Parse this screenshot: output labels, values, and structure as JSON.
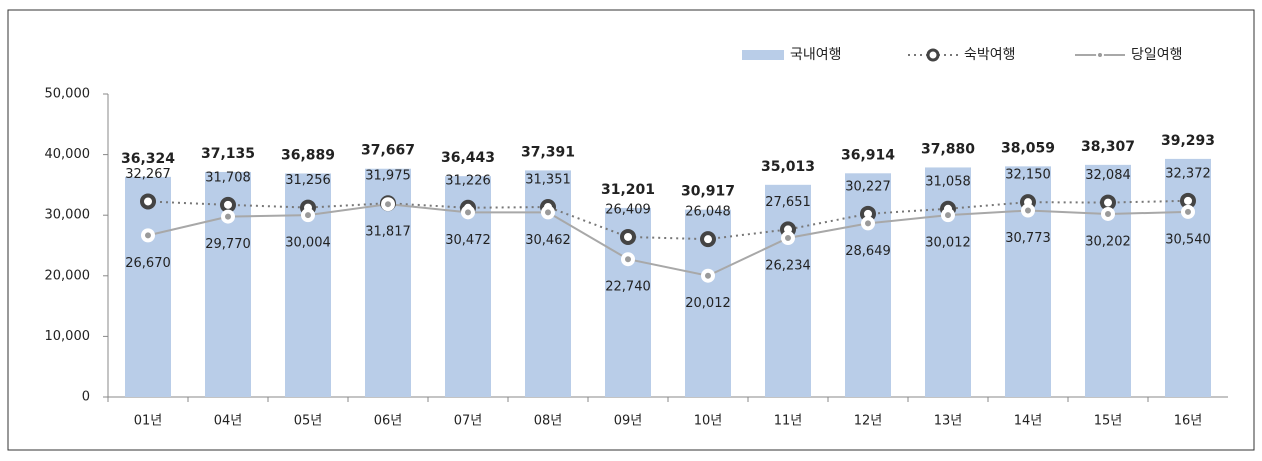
{
  "chart_data": {
    "type": "bar",
    "categories": [
      "01년",
      "04년",
      "05년",
      "06년",
      "07년",
      "08년",
      "09년",
      "10년",
      "11년",
      "12년",
      "13년",
      "14년",
      "15년",
      "16년"
    ],
    "series": [
      {
        "name": "국내여행",
        "type": "bar",
        "color": "#b9cde8",
        "values": [
          36324,
          37135,
          36889,
          37667,
          36443,
          37391,
          31201,
          30917,
          35013,
          36914,
          37880,
          38059,
          38307,
          39293
        ],
        "value_labels": [
          "36,324",
          "37,135",
          "36,889",
          "37,667",
          "36,443",
          "37,391",
          "31,201",
          "30,917",
          "35,013",
          "36,914",
          "37,880",
          "38,059",
          "38,307",
          "39,293"
        ]
      },
      {
        "name": "숙박여행",
        "type": "line",
        "color": "#444444",
        "values": [
          32267,
          31708,
          31256,
          31975,
          31226,
          31351,
          26409,
          26048,
          27651,
          30227,
          31058,
          32150,
          32084,
          32372
        ],
        "value_labels": [
          "32,267",
          "31,708",
          "31,256",
          "31,975",
          "31,226",
          "31,351",
          "26,409",
          "26,048",
          "27,651",
          "30,227",
          "31,058",
          "32,150",
          "32,084",
          "32,372"
        ]
      },
      {
        "name": "당일여행",
        "type": "line",
        "color": "#9a9a9a",
        "values": [
          26670,
          29770,
          30004,
          31817,
          30472,
          30462,
          22740,
          20012,
          26234,
          28649,
          30012,
          30773,
          30202,
          30540
        ],
        "value_labels": [
          "26,670",
          "29,770",
          "30,004",
          "31,817",
          "30,472",
          "30,462",
          "22,740",
          "20,012",
          "26,234",
          "28,649",
          "30,012",
          "30,773",
          "30,202",
          "30,540"
        ]
      }
    ],
    "ylim": [
      0,
      50000
    ],
    "yticks": [
      0,
      {
        "value": 10000,
        "label": "10,000"
      },
      {
        "value": 20000,
        "label": "20,000"
      },
      {
        "value": 30000,
        "label": "30,000"
      },
      {
        "value": 40000,
        "label": "40,000"
      },
      {
        "value": 50000,
        "label": "50,000"
      }
    ],
    "legend": "top-right"
  }
}
